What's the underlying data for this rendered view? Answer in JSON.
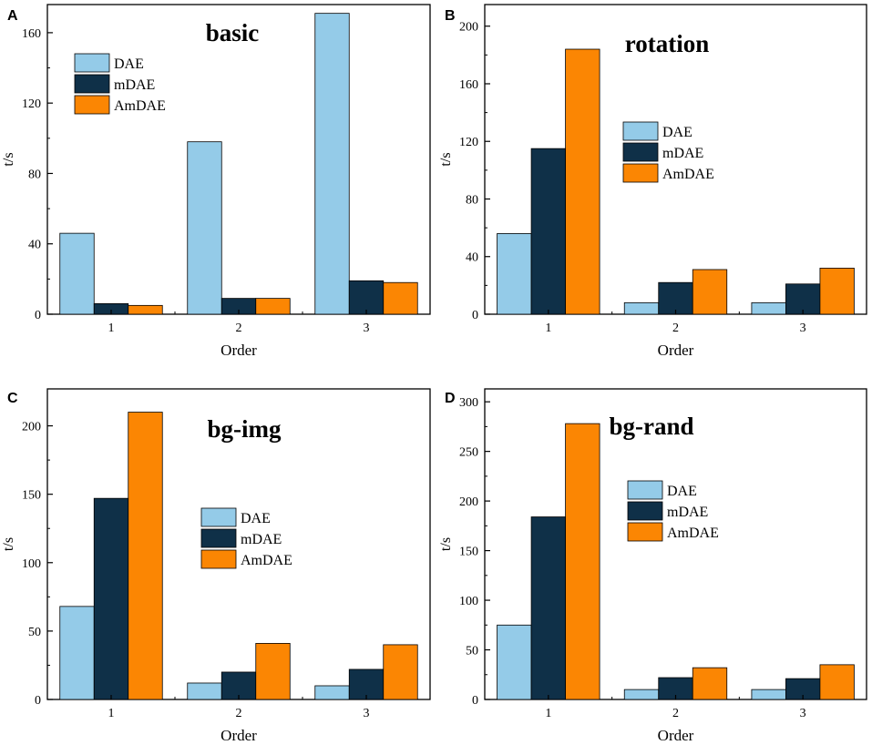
{
  "colors": {
    "DAE": "#94cbe8",
    "mDAE": "#0f3048",
    "AmDAE": "#fb8603",
    "axis": "#000000",
    "background": "#ffffff"
  },
  "chart_data": [
    {
      "panel_label": "A",
      "type": "bar",
      "title": "basic",
      "xlabel": "Order",
      "ylabel": "t/s",
      "categories": [
        "1",
        "2",
        "3"
      ],
      "series": [
        {
          "name": "DAE",
          "values": [
            46,
            98,
            171
          ]
        },
        {
          "name": "mDAE",
          "values": [
            6,
            9,
            19
          ]
        },
        {
          "name": "AmDAE",
          "values": [
            5,
            9,
            18
          ]
        }
      ],
      "ylim": [
        0,
        176
      ],
      "yticks": [
        0,
        40,
        80,
        120,
        160
      ],
      "grid": false,
      "legend": "top-left"
    },
    {
      "panel_label": "B",
      "type": "bar",
      "title": "rotation",
      "xlabel": "Order",
      "ylabel": "t/s",
      "categories": [
        "1",
        "2",
        "3"
      ],
      "series": [
        {
          "name": "DAE",
          "values": [
            56,
            8,
            8
          ]
        },
        {
          "name": "mDAE",
          "values": [
            115,
            22,
            21
          ]
        },
        {
          "name": "AmDAE",
          "values": [
            184,
            31,
            32
          ]
        }
      ],
      "ylim": [
        0,
        215
      ],
      "yticks": [
        0,
        40,
        80,
        120,
        160,
        200
      ],
      "grid": false,
      "legend": "center"
    },
    {
      "panel_label": "C",
      "type": "bar",
      "title": "bg-img",
      "xlabel": "Order",
      "ylabel": "t/s",
      "categories": [
        "1",
        "2",
        "3"
      ],
      "series": [
        {
          "name": "DAE",
          "values": [
            68,
            12,
            10
          ]
        },
        {
          "name": "mDAE",
          "values": [
            147,
            20,
            22
          ]
        },
        {
          "name": "AmDAE",
          "values": [
            210,
            41,
            40
          ]
        }
      ],
      "ylim": [
        0,
        227
      ],
      "yticks": [
        0,
        50,
        100,
        150,
        200
      ],
      "grid": false,
      "legend": "center"
    },
    {
      "panel_label": "D",
      "type": "bar",
      "title": "bg-rand",
      "xlabel": "Order",
      "ylabel": "t/s",
      "categories": [
        "1",
        "2",
        "3"
      ],
      "series": [
        {
          "name": "DAE",
          "values": [
            75,
            10,
            10
          ]
        },
        {
          "name": "mDAE",
          "values": [
            184,
            22,
            21
          ]
        },
        {
          "name": "AmDAE",
          "values": [
            278,
            32,
            35
          ]
        }
      ],
      "ylim": [
        0,
        313
      ],
      "yticks": [
        0,
        50,
        100,
        150,
        200,
        250,
        300
      ],
      "grid": false,
      "legend": "top-center"
    }
  ]
}
